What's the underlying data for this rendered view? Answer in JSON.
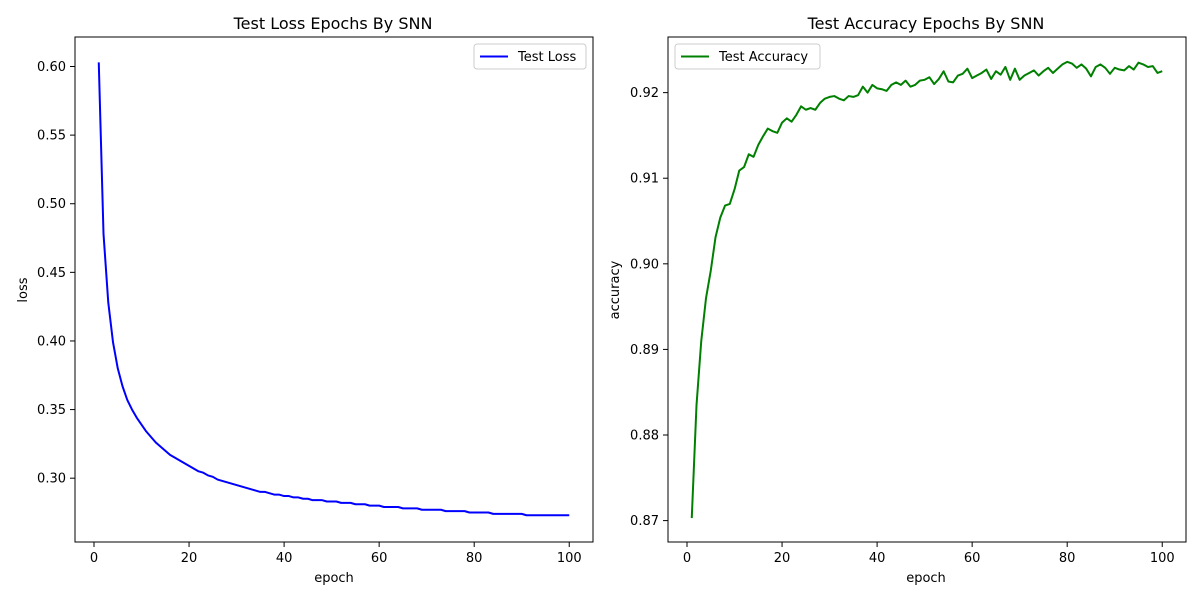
{
  "chart_data": [
    {
      "type": "line",
      "title": "Test Loss Epochs By SNN",
      "xlabel": "epoch",
      "ylabel": "loss",
      "xlim": [
        -4,
        105
      ],
      "ylim": [
        0.2535,
        0.6215
      ],
      "xticks": [
        0,
        20,
        40,
        60,
        80,
        100
      ],
      "xtick_labels": [
        "0",
        "20",
        "40",
        "60",
        "80",
        "100"
      ],
      "yticks": [
        0.3,
        0.35,
        0.4,
        0.45,
        0.5,
        0.55,
        0.6
      ],
      "ytick_labels": [
        "0.30",
        "0.35",
        "0.40",
        "0.45",
        "0.50",
        "0.55",
        "0.60"
      ],
      "grid": false,
      "legend_position": "top-right",
      "x": [
        1,
        2,
        3,
        4,
        5,
        6,
        7,
        8,
        9,
        10,
        11,
        12,
        13,
        14,
        15,
        16,
        17,
        18,
        19,
        20,
        21,
        22,
        23,
        24,
        25,
        26,
        27,
        28,
        29,
        30,
        31,
        32,
        33,
        34,
        35,
        36,
        37,
        38,
        39,
        40,
        41,
        42,
        43,
        44,
        45,
        46,
        47,
        48,
        49,
        50,
        51,
        52,
        53,
        54,
        55,
        56,
        57,
        58,
        59,
        60,
        61,
        62,
        63,
        64,
        65,
        66,
        67,
        68,
        69,
        70,
        71,
        72,
        73,
        74,
        75,
        76,
        77,
        78,
        79,
        80,
        81,
        82,
        83,
        84,
        85,
        86,
        87,
        88,
        89,
        90,
        91,
        92,
        93,
        94,
        95,
        96,
        97,
        98,
        99,
        100
      ],
      "series": [
        {
          "name": "Test Loss",
          "color": "#0000ff",
          "values": [
            0.603,
            0.478,
            0.428,
            0.399,
            0.38,
            0.367,
            0.357,
            0.35,
            0.344,
            0.339,
            0.334,
            0.33,
            0.326,
            0.323,
            0.32,
            0.317,
            0.315,
            0.313,
            0.311,
            0.309,
            0.307,
            0.305,
            0.304,
            0.302,
            0.301,
            0.299,
            0.298,
            0.297,
            0.296,
            0.295,
            0.294,
            0.293,
            0.292,
            0.291,
            0.29,
            0.29,
            0.289,
            0.288,
            0.288,
            0.287,
            0.287,
            0.286,
            0.286,
            0.285,
            0.285,
            0.284,
            0.284,
            0.284,
            0.283,
            0.283,
            0.283,
            0.282,
            0.282,
            0.282,
            0.281,
            0.281,
            0.281,
            0.28,
            0.28,
            0.28,
            0.279,
            0.279,
            0.279,
            0.279,
            0.278,
            0.278,
            0.278,
            0.278,
            0.277,
            0.277,
            0.277,
            0.277,
            0.277,
            0.276,
            0.276,
            0.276,
            0.276,
            0.276,
            0.275,
            0.275,
            0.275,
            0.275,
            0.275,
            0.274,
            0.274,
            0.274,
            0.274,
            0.274,
            0.274,
            0.274,
            0.273,
            0.273,
            0.273,
            0.273,
            0.273,
            0.273,
            0.273,
            0.273,
            0.273,
            0.273
          ]
        }
      ]
    },
    {
      "type": "line",
      "title": "Test Accuracy Epochs By SNN",
      "xlabel": "epoch",
      "ylabel": "accuracy",
      "xlim": [
        -4,
        105
      ],
      "ylim": [
        0.8675,
        0.9265
      ],
      "xticks": [
        0,
        20,
        40,
        60,
        80,
        100
      ],
      "xtick_labels": [
        "0",
        "20",
        "40",
        "60",
        "80",
        "100"
      ],
      "yticks": [
        0.87,
        0.88,
        0.89,
        0.9,
        0.91,
        0.92
      ],
      "ytick_labels": [
        "0.87",
        "0.88",
        "0.89",
        "0.90",
        "0.91",
        "0.92"
      ],
      "grid": false,
      "legend_position": "top-left",
      "x": [
        1,
        2,
        3,
        4,
        5,
        6,
        7,
        8,
        9,
        10,
        11,
        12,
        13,
        14,
        15,
        16,
        17,
        18,
        19,
        20,
        21,
        22,
        23,
        24,
        25,
        26,
        27,
        28,
        29,
        30,
        31,
        32,
        33,
        34,
        35,
        36,
        37,
        38,
        39,
        40,
        41,
        42,
        43,
        44,
        45,
        46,
        47,
        48,
        49,
        50,
        51,
        52,
        53,
        54,
        55,
        56,
        57,
        58,
        59,
        60,
        61,
        62,
        63,
        64,
        65,
        66,
        67,
        68,
        69,
        70,
        71,
        72,
        73,
        74,
        75,
        76,
        77,
        78,
        79,
        80,
        81,
        82,
        83,
        84,
        85,
        86,
        87,
        88,
        89,
        90,
        91,
        92,
        93,
        94,
        95,
        96,
        97,
        98,
        99,
        100
      ],
      "series": [
        {
          "name": "Test Accuracy",
          "color": "#008000",
          "values": [
            0.8703,
            0.8835,
            0.891,
            0.896,
            0.8992,
            0.9031,
            0.9054,
            0.9068,
            0.907,
            0.9087,
            0.9109,
            0.9113,
            0.9128,
            0.9125,
            0.9139,
            0.9149,
            0.9158,
            0.9155,
            0.9153,
            0.9165,
            0.917,
            0.9166,
            0.9174,
            0.9184,
            0.918,
            0.9182,
            0.918,
            0.9188,
            0.9193,
            0.9195,
            0.9196,
            0.9193,
            0.9191,
            0.9196,
            0.9195,
            0.9197,
            0.9207,
            0.92,
            0.9209,
            0.9205,
            0.9204,
            0.9202,
            0.9209,
            0.9212,
            0.9209,
            0.9214,
            0.9207,
            0.9209,
            0.9214,
            0.9215,
            0.9218,
            0.921,
            0.9216,
            0.9225,
            0.9213,
            0.9212,
            0.922,
            0.9222,
            0.9228,
            0.9217,
            0.922,
            0.9223,
            0.9227,
            0.9216,
            0.9225,
            0.9221,
            0.923,
            0.9215,
            0.9228,
            0.9215,
            0.922,
            0.9223,
            0.9226,
            0.922,
            0.9225,
            0.9229,
            0.9223,
            0.9228,
            0.9233,
            0.9236,
            0.9234,
            0.9229,
            0.9233,
            0.9228,
            0.9219,
            0.923,
            0.9233,
            0.9229,
            0.9222,
            0.9229,
            0.9227,
            0.9226,
            0.9231,
            0.9227,
            0.9235,
            0.9233,
            0.923,
            0.9231,
            0.9223,
            0.9225
          ]
        }
      ]
    }
  ]
}
